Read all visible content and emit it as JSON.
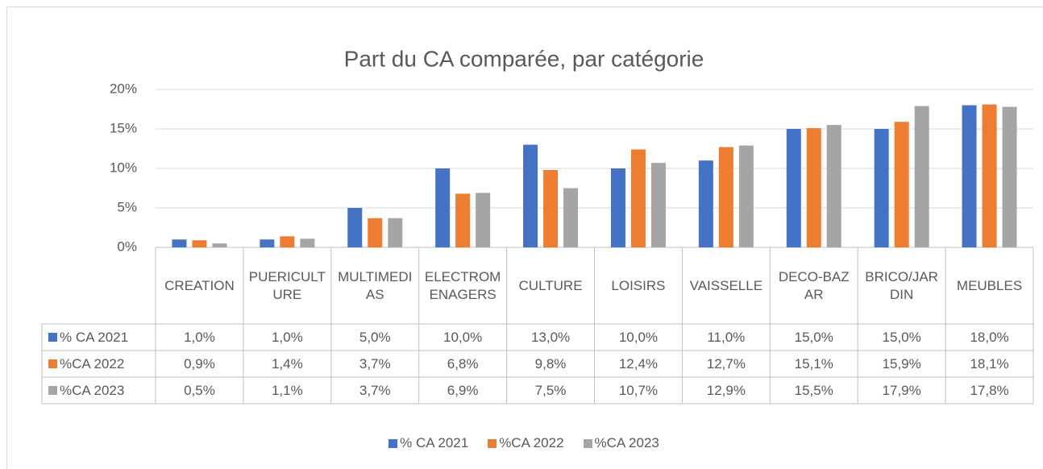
{
  "chart_data": {
    "type": "bar",
    "title": "Part du CA comparée, par catégorie",
    "categories": [
      "CREATION",
      "PUERICULTURE",
      "MULTIMEDIAS",
      "ELECTROMENAGERS",
      "CULTURE",
      "LOISIRS",
      "VAISSELLE",
      "DECO-BAZAR",
      "BRICO/JARDIN",
      "MEUBLES"
    ],
    "series": [
      {
        "name": "% CA 2021",
        "color": "#4472c4",
        "values": [
          1.0,
          1.0,
          5.0,
          10.0,
          13.0,
          10.0,
          11.0,
          15.0,
          15.0,
          18.0
        ],
        "value_labels": [
          "1,0%",
          "1,0%",
          "5,0%",
          "10,0%",
          "13,0%",
          "10,0%",
          "11,0%",
          "15,0%",
          "15,0%",
          "18,0%"
        ]
      },
      {
        "name": "%CA 2022",
        "color": "#ed7d31",
        "values": [
          0.9,
          1.4,
          3.7,
          6.8,
          9.8,
          12.4,
          12.7,
          15.1,
          15.9,
          18.1
        ],
        "value_labels": [
          "0,9%",
          "1,4%",
          "3,7%",
          "6,8%",
          "9,8%",
          "12,4%",
          "12,7%",
          "15,1%",
          "15,9%",
          "18,1%"
        ]
      },
      {
        "name": "%CA 2023",
        "color": "#a5a5a5",
        "values": [
          0.5,
          1.1,
          3.7,
          6.9,
          7.5,
          10.7,
          12.9,
          15.5,
          17.9,
          17.8
        ],
        "value_labels": [
          "0,5%",
          "1,1%",
          "3,7%",
          "6,9%",
          "7,5%",
          "10,7%",
          "12,9%",
          "15,5%",
          "17,9%",
          "17,8%"
        ]
      }
    ],
    "ylim": [
      0,
      20
    ],
    "yticks": [
      {
        "value": 0,
        "label": "0%"
      },
      {
        "value": 5,
        "label": "5%"
      },
      {
        "value": 10,
        "label": "10%"
      },
      {
        "value": 15,
        "label": "15%"
      },
      {
        "value": 20,
        "label": "20%"
      }
    ],
    "grid": true,
    "legend": "bottom"
  }
}
